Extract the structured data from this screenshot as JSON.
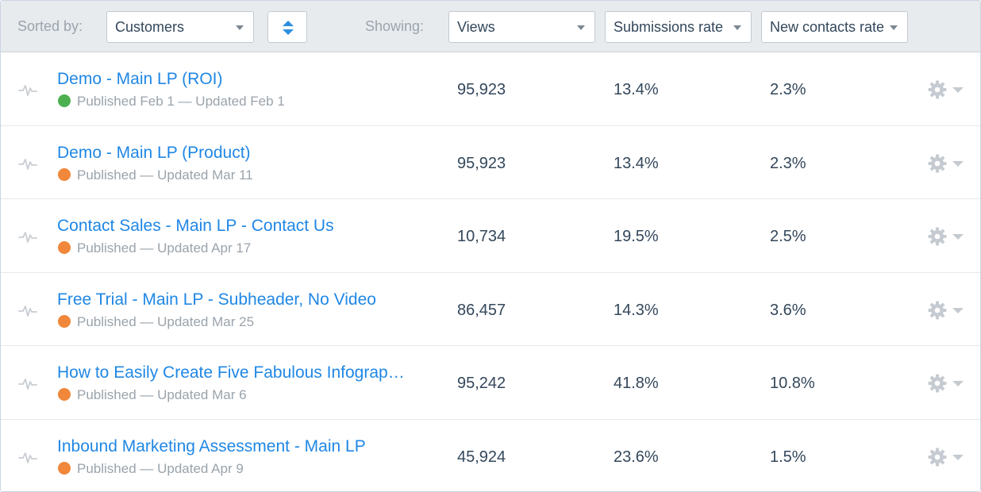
{
  "toolbar": {
    "sorted_by_label": "Sorted by:",
    "sort_field": "Customers",
    "showing_label": "Showing:",
    "columns": [
      {
        "label": "Views"
      },
      {
        "label": "Submissions rate"
      },
      {
        "label": "New contacts rate"
      }
    ]
  },
  "colors": {
    "accent": "#1f87e5",
    "status_green": "#4cb050",
    "status_orange": "#f0873a"
  },
  "icons": {
    "row_pulse": "activity-icon",
    "row_settings": "gear-icon",
    "sort_toggle": "sort-arrows-icon"
  },
  "rows": [
    {
      "title": "Demo - Main LP (ROI)",
      "status_color": "green",
      "status": "Published Feb 1 — Updated Feb 1",
      "views": "95,923",
      "submissions_rate": "13.4%",
      "new_contacts_rate": "2.3%"
    },
    {
      "title": "Demo - Main LP (Product)",
      "status_color": "orange",
      "status": "Published — Updated Mar 11",
      "views": "95,923",
      "submissions_rate": "13.4%",
      "new_contacts_rate": "2.3%"
    },
    {
      "title": "Contact Sales - Main LP - Contact Us",
      "status_color": "orange",
      "status": "Published — Updated Apr 17",
      "views": "10,734",
      "submissions_rate": "19.5%",
      "new_contacts_rate": "2.5%"
    },
    {
      "title": "Free Trial - Main LP - Subheader, No Video",
      "status_color": "orange",
      "status": "Published — Updated Mar 25",
      "views": "86,457",
      "submissions_rate": "14.3%",
      "new_contacts_rate": "3.6%"
    },
    {
      "title": "How to Easily Create Five Fabulous Infograp…",
      "status_color": "orange",
      "status": "Published — Updated Mar 6",
      "views": "95,242",
      "submissions_rate": "41.8%",
      "new_contacts_rate": "10.8%"
    },
    {
      "title": "Inbound Marketing Assessment - Main LP",
      "status_color": "orange",
      "status": "Published — Updated Apr 9",
      "views": "45,924",
      "submissions_rate": "23.6%",
      "new_contacts_rate": "1.5%"
    }
  ]
}
